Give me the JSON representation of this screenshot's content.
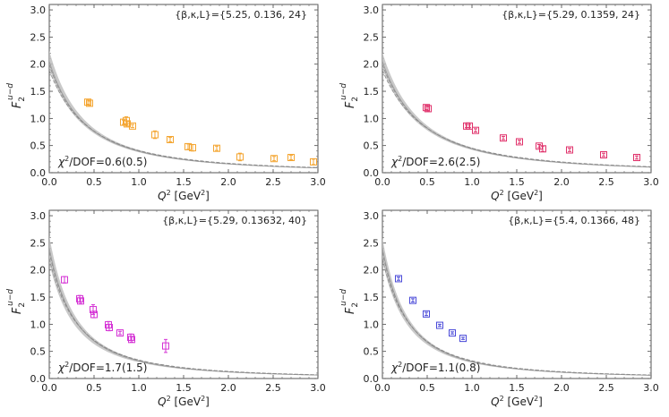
{
  "chart_data": [
    {
      "type": "scatter",
      "panel": "top-left",
      "param_label": "{β,κ,L}={5.25, 0.136, 24}",
      "chi_label": {
        "base": "χ",
        "sup": "2",
        "rest": "/DOF=0.6(0.5)"
      },
      "xlabel": {
        "base": "Q",
        "sup": "2",
        "rest": " [GeV",
        "sup2": "2",
        "end": "]"
      },
      "ylabel": {
        "base": "F",
        "sub": "2",
        "sup": "u−d"
      },
      "xlim": [
        0,
        3
      ],
      "ylim": [
        0,
        3.1
      ],
      "xticks": [
        "0.0",
        "0.5",
        "1.0",
        "1.5",
        "2.0",
        "2.5",
        "3.0"
      ],
      "yticks": [
        "0.0",
        "0.5",
        "1.0",
        "1.5",
        "2.0",
        "2.5",
        "3.0"
      ],
      "marker_color": "#f4a530",
      "fit": {
        "A": 2.05,
        "M2": 0.78,
        "band_lo": 0.96,
        "band_hi": 1.06
      },
      "points": [
        {
          "x": 0.43,
          "y": 1.3,
          "err": 0.04
        },
        {
          "x": 0.45,
          "y": 1.28,
          "err": 0.04
        },
        {
          "x": 0.83,
          "y": 0.93,
          "err": 0.04
        },
        {
          "x": 0.86,
          "y": 0.96,
          "err": 0.07
        },
        {
          "x": 0.87,
          "y": 0.9,
          "err": 0.04
        },
        {
          "x": 0.93,
          "y": 0.86,
          "err": 0.03
        },
        {
          "x": 1.18,
          "y": 0.7,
          "err": 0.07
        },
        {
          "x": 1.35,
          "y": 0.61,
          "err": 0.04
        },
        {
          "x": 1.55,
          "y": 0.48,
          "err": 0.05
        },
        {
          "x": 1.6,
          "y": 0.46,
          "err": 0.06
        },
        {
          "x": 1.87,
          "y": 0.45,
          "err": 0.04
        },
        {
          "x": 2.13,
          "y": 0.29,
          "err": 0.07
        },
        {
          "x": 2.51,
          "y": 0.26,
          "err": 0.04
        },
        {
          "x": 2.7,
          "y": 0.28,
          "err": 0.04
        },
        {
          "x": 2.95,
          "y": 0.2,
          "err": 0.05
        }
      ]
    },
    {
      "type": "scatter",
      "panel": "top-right",
      "param_label": "{β,κ,L}={5.29, 0.1359, 24}",
      "chi_label": {
        "base": "χ",
        "sup": "2",
        "rest": "/DOF=2.6(2.5)"
      },
      "xlabel": {
        "base": "Q",
        "sup": "2",
        "rest": " [GeV",
        "sup2": "2",
        "end": "]"
      },
      "ylabel": {
        "base": "F",
        "sub": "2",
        "sup": "u−d"
      },
      "xlim": [
        0,
        3
      ],
      "ylim": [
        0,
        3.1
      ],
      "xticks": [
        "0.0",
        "0.5",
        "1.0",
        "1.5",
        "2.0",
        "2.5",
        "3.0"
      ],
      "yticks": [
        "0.0",
        "0.5",
        "1.0",
        "1.5",
        "2.0",
        "2.5",
        "3.0"
      ],
      "marker_color": "#e0306a",
      "fit": {
        "A": 2.05,
        "M2": 0.86,
        "band_lo": 0.96,
        "band_hi": 1.05
      },
      "points": [
        {
          "x": 0.49,
          "y": 1.2,
          "err": 0.04
        },
        {
          "x": 0.51,
          "y": 1.18,
          "err": 0.04
        },
        {
          "x": 0.94,
          "y": 0.86,
          "err": 0.03
        },
        {
          "x": 0.97,
          "y": 0.86,
          "err": 0.03
        },
        {
          "x": 1.04,
          "y": 0.78,
          "err": 0.03
        },
        {
          "x": 1.35,
          "y": 0.64,
          "err": 0.03
        },
        {
          "x": 1.53,
          "y": 0.57,
          "err": 0.03
        },
        {
          "x": 1.75,
          "y": 0.49,
          "err": 0.03
        },
        {
          "x": 1.79,
          "y": 0.44,
          "err": 0.05
        },
        {
          "x": 2.09,
          "y": 0.42,
          "err": 0.03
        },
        {
          "x": 2.47,
          "y": 0.33,
          "err": 0.03
        },
        {
          "x": 2.84,
          "y": 0.28,
          "err": 0.03
        }
      ]
    },
    {
      "type": "scatter",
      "panel": "bottom-left",
      "param_label": "{β,κ,L}={5.29, 0.13632, 40}",
      "chi_label": {
        "base": "χ",
        "sup": "2",
        "rest": "/DOF=1.7(1.5)"
      },
      "xlabel": {
        "base": "Q",
        "sup": "2",
        "rest": " [GeV",
        "sup2": "2",
        "end": "]"
      },
      "ylabel": {
        "base": "F",
        "sub": "2",
        "sup": "u−d"
      },
      "xlim": [
        0,
        3
      ],
      "ylim": [
        0,
        3.1
      ],
      "xticks": [
        "0.0",
        "0.5",
        "1.0",
        "1.5",
        "2.0",
        "2.5",
        "3.0"
      ],
      "yticks": [
        "0.0",
        "0.5",
        "1.0",
        "1.5",
        "2.0",
        "2.5",
        "3.0"
      ],
      "marker_color": "#d535d5",
      "fit": {
        "A": 2.4,
        "M2": 0.58,
        "band_lo": 0.93,
        "band_hi": 1.06
      },
      "points": [
        {
          "x": 0.17,
          "y": 1.82,
          "err": 0.06
        },
        {
          "x": 0.34,
          "y": 1.47,
          "err": 0.06
        },
        {
          "x": 0.35,
          "y": 1.43,
          "err": 0.05
        },
        {
          "x": 0.49,
          "y": 1.27,
          "err": 0.09
        },
        {
          "x": 0.5,
          "y": 1.18,
          "err": 0.06
        },
        {
          "x": 0.66,
          "y": 0.99,
          "err": 0.06
        },
        {
          "x": 0.67,
          "y": 0.94,
          "err": 0.06
        },
        {
          "x": 0.79,
          "y": 0.84,
          "err": 0.03
        },
        {
          "x": 0.91,
          "y": 0.76,
          "err": 0.06
        },
        {
          "x": 0.92,
          "y": 0.72,
          "err": 0.05
        },
        {
          "x": 1.3,
          "y": 0.6,
          "err": 0.12
        }
      ]
    },
    {
      "type": "scatter",
      "panel": "bottom-right",
      "param_label": "{β,κ,L}={5.4, 0.1366, 48}",
      "chi_label": {
        "base": "χ",
        "sup": "2",
        "rest": "/DOF=1.1(0.8)"
      },
      "xlabel": {
        "base": "Q",
        "sup": "2",
        "rest": " [GeV",
        "sup2": "2",
        "end": "]"
      },
      "ylabel": {
        "base": "F",
        "sub": "2",
        "sup": "u−d"
      },
      "xlim": [
        0,
        3
      ],
      "ylim": [
        0,
        3.1
      ],
      "xticks": [
        "0.0",
        "0.5",
        "1.0",
        "1.5",
        "2.0",
        "2.5",
        "3.0"
      ],
      "yticks": [
        "0.0",
        "0.5",
        "1.0",
        "1.5",
        "2.0",
        "2.5",
        "3.0"
      ],
      "marker_color": "#4848d8",
      "fit": {
        "A": 2.4,
        "M2": 0.56,
        "band_lo": 0.94,
        "band_hi": 1.05
      },
      "points": [
        {
          "x": 0.18,
          "y": 1.84,
          "err": 0.03
        },
        {
          "x": 0.34,
          "y": 1.44,
          "err": 0.03
        },
        {
          "x": 0.49,
          "y": 1.19,
          "err": 0.03
        },
        {
          "x": 0.64,
          "y": 0.98,
          "err": 0.02
        },
        {
          "x": 0.78,
          "y": 0.84,
          "err": 0.02
        },
        {
          "x": 0.9,
          "y": 0.74,
          "err": 0.02
        }
      ]
    }
  ]
}
